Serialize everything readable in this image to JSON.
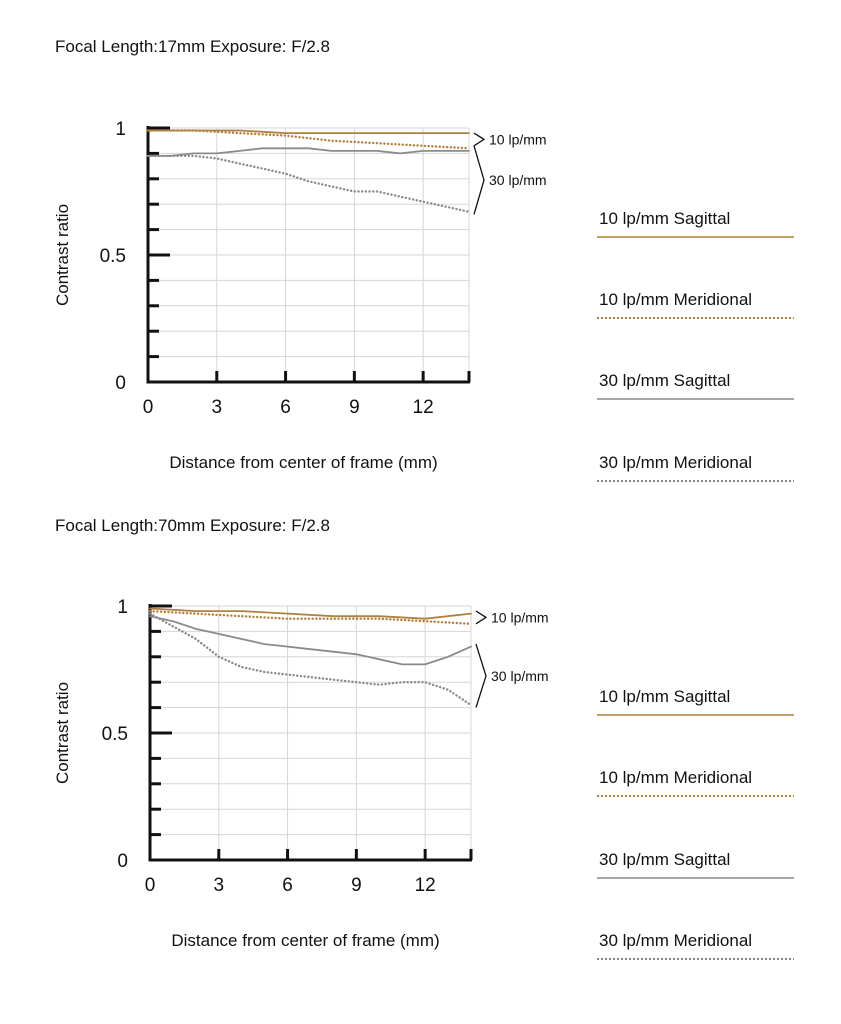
{
  "legend": {
    "items": [
      {
        "label": "10 lp/mm Sagittal",
        "color": "#b0803e",
        "style": "solid"
      },
      {
        "label": "10 lp/mm Meridional",
        "color": "#b0803e",
        "style": "dotted"
      },
      {
        "label": "30 lp/mm Sagittal",
        "color": "#8a8a8a",
        "style": "solid"
      },
      {
        "label": "30 lp/mm Meridional",
        "color": "#8a8a8a",
        "style": "dotted"
      }
    ]
  },
  "chart_data": [
    {
      "type": "line",
      "title": "Focal Length:17mm    Exposure: F/2.8",
      "xlabel": "Distance from center of frame (mm)",
      "ylabel": "Contrast ratio",
      "xlim": [
        0,
        14
      ],
      "ylim": [
        0,
        1
      ],
      "x_ticks": [
        0,
        3,
        6,
        9,
        12
      ],
      "y_tick_labels": [
        "0",
        "0.5",
        "1"
      ],
      "y_tick_values": [
        0,
        0.5,
        1
      ],
      "grid": true,
      "legend_placement": "right",
      "annotations": [
        {
          "label": "10 lp/mm",
          "y_range": [
            0.93,
            0.98
          ]
        },
        {
          "label": "30 lp/mm",
          "y_range": [
            0.66,
            0.93
          ]
        }
      ],
      "series": [
        {
          "name": "10 lp/mm Sagittal",
          "x": [
            0,
            2,
            4,
            6,
            8,
            10,
            12,
            14
          ],
          "values": [
            0.99,
            0.99,
            0.99,
            0.98,
            0.98,
            0.98,
            0.98,
            0.98
          ]
        },
        {
          "name": "10 lp/mm Meridional",
          "x": [
            0,
            2,
            4,
            6,
            8,
            10,
            12,
            14
          ],
          "values": [
            0.99,
            0.99,
            0.98,
            0.97,
            0.95,
            0.94,
            0.93,
            0.92
          ]
        },
        {
          "name": "30 lp/mm Sagittal",
          "x": [
            0,
            1,
            2,
            3,
            4,
            5,
            6,
            7,
            8,
            9,
            10,
            11,
            12,
            13,
            14
          ],
          "values": [
            0.89,
            0.89,
            0.9,
            0.9,
            0.91,
            0.92,
            0.92,
            0.92,
            0.91,
            0.91,
            0.91,
            0.9,
            0.91,
            0.91,
            0.91
          ]
        },
        {
          "name": "30 lp/mm Meridional",
          "x": [
            0,
            1,
            2,
            3,
            4,
            5,
            6,
            7,
            8,
            9,
            10,
            11,
            12,
            13,
            14
          ],
          "values": [
            0.89,
            0.89,
            0.89,
            0.88,
            0.86,
            0.84,
            0.82,
            0.79,
            0.77,
            0.75,
            0.75,
            0.73,
            0.71,
            0.69,
            0.67
          ]
        }
      ]
    },
    {
      "type": "line",
      "title": "Focal Length:70mm    Exposure: F/2.8",
      "xlabel": "Distance from center of frame (mm)",
      "ylabel": "Contrast ratio",
      "xlim": [
        0,
        14
      ],
      "ylim": [
        0,
        1
      ],
      "x_ticks": [
        0,
        3,
        6,
        9,
        12
      ],
      "y_tick_labels": [
        "0",
        "0.5",
        "1"
      ],
      "y_tick_values": [
        0,
        0.5,
        1
      ],
      "grid": true,
      "legend_placement": "right",
      "annotations": [
        {
          "label": "10 lp/mm",
          "y_range": [
            0.93,
            0.98
          ]
        },
        {
          "label": "30 lp/mm",
          "y_range": [
            0.6,
            0.85
          ]
        }
      ],
      "series": [
        {
          "name": "10 lp/mm Sagittal",
          "x": [
            0,
            2,
            4,
            6,
            8,
            10,
            12,
            14
          ],
          "values": [
            0.99,
            0.98,
            0.98,
            0.97,
            0.96,
            0.96,
            0.95,
            0.97
          ]
        },
        {
          "name": "10 lp/mm Meridional",
          "x": [
            0,
            2,
            4,
            6,
            8,
            10,
            12,
            14
          ],
          "values": [
            0.98,
            0.97,
            0.96,
            0.95,
            0.95,
            0.95,
            0.94,
            0.93
          ]
        },
        {
          "name": "30 lp/mm Sagittal",
          "x": [
            0,
            1,
            2,
            3,
            4,
            5,
            6,
            7,
            8,
            9,
            10,
            11,
            12,
            13,
            14
          ],
          "values": [
            0.96,
            0.94,
            0.91,
            0.89,
            0.87,
            0.85,
            0.84,
            0.83,
            0.82,
            0.81,
            0.79,
            0.77,
            0.77,
            0.8,
            0.84
          ]
        },
        {
          "name": "30 lp/mm Meridional",
          "x": [
            0,
            1,
            2,
            3,
            4,
            5,
            6,
            7,
            8,
            9,
            10,
            11,
            12,
            13,
            14
          ],
          "values": [
            0.97,
            0.92,
            0.87,
            0.8,
            0.76,
            0.74,
            0.73,
            0.72,
            0.71,
            0.7,
            0.69,
            0.7,
            0.7,
            0.67,
            0.61
          ]
        }
      ]
    }
  ]
}
